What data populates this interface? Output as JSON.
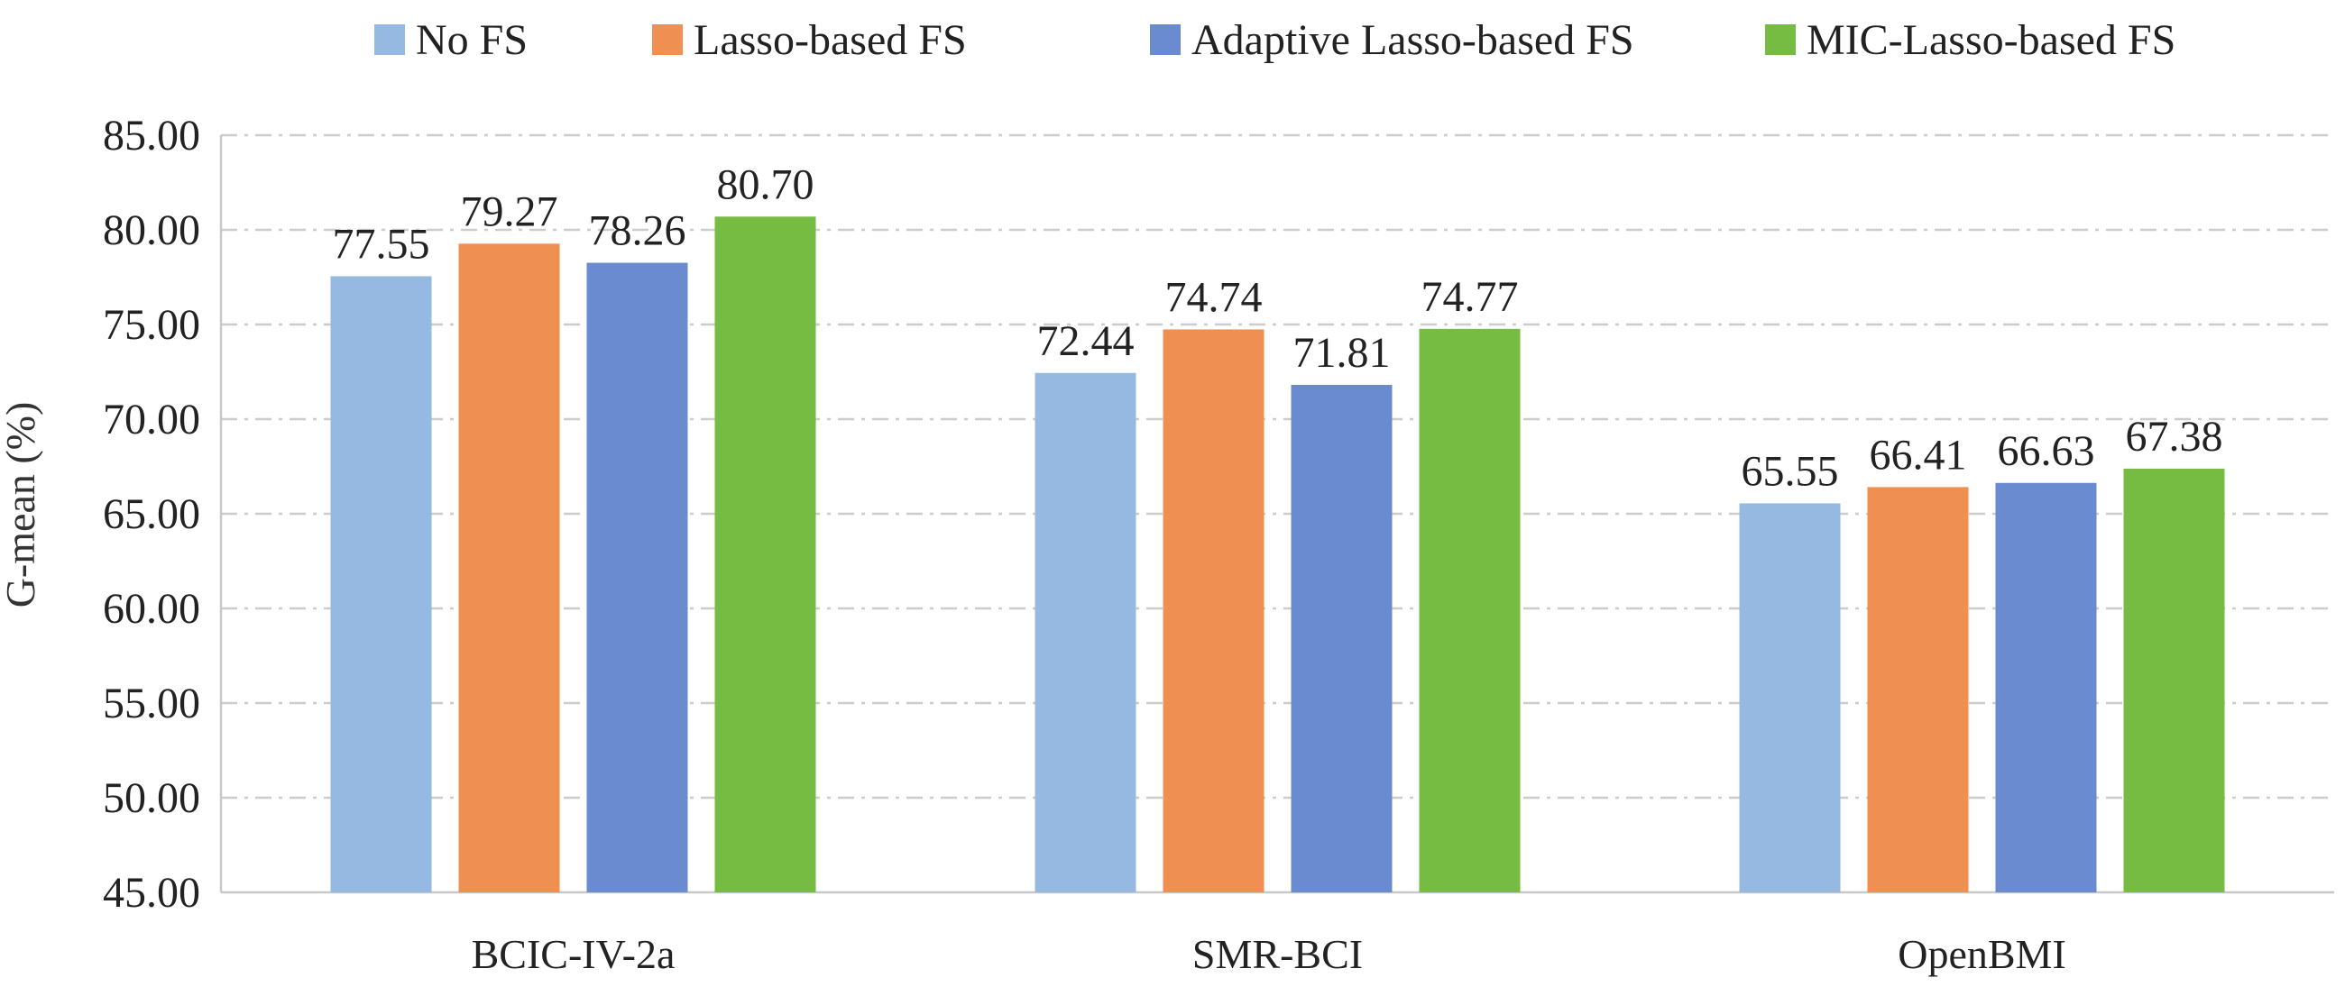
{
  "chart_data": {
    "type": "bar",
    "title": "",
    "xlabel": "",
    "ylabel": "G-mean (%)",
    "ylim": [
      45,
      85
    ],
    "yticks": [
      "45.00",
      "50.00",
      "55.00",
      "60.00",
      "65.00",
      "70.00",
      "75.00",
      "80.00",
      "85.00"
    ],
    "grid": true,
    "legend_position": "top",
    "categories": [
      "BCIC-IV-2a",
      "SMR-BCI",
      "OpenBMI"
    ],
    "series": [
      {
        "name": "No FS",
        "color": "#95B9E0",
        "values": [
          77.55,
          72.44,
          65.55
        ],
        "labels": [
          "77.55",
          "72.44",
          "65.55"
        ]
      },
      {
        "name": "Lasso-based FS",
        "color": "#F08F52",
        "values": [
          79.27,
          74.74,
          66.41
        ],
        "labels": [
          "79.27",
          "74.74",
          "66.41"
        ]
      },
      {
        "name": "Adaptive Lasso-based FS",
        "color": "#6A8BCF",
        "values": [
          78.26,
          71.81,
          66.63
        ],
        "labels": [
          "78.26",
          "71.81",
          "66.63"
        ]
      },
      {
        "name": "MIC-Lasso-based FS",
        "color": "#76BC43",
        "values": [
          80.7,
          74.77,
          67.38
        ],
        "labels": [
          "80.70",
          "74.77",
          "67.38"
        ]
      }
    ]
  }
}
